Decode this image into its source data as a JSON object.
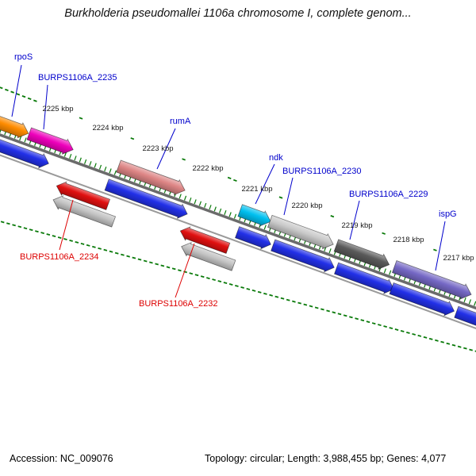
{
  "title": "Burkholderia pseudomallei 1106a chromosome I, complete genom...",
  "footer": {
    "accession": "Accession: NC_009076",
    "summary": "Topology: circular; Length: 3,988,455 bp; Genes: 4,077"
  },
  "ruler": {
    "unit": "kbp",
    "tick_labels": [
      "2225 kbp",
      "2224 kbp",
      "2223 kbp",
      "2222 kbp",
      "2221 kbp",
      "2220 kbp",
      "2219 kbp",
      "2218 kbp",
      "2217 kbp"
    ]
  },
  "colors": {
    "forward_cds": "#2230e8",
    "reverse_shadow": "#c4c4c4",
    "tick_green": "#0a7a0a",
    "backbone": "#6b6b6b",
    "backbone_inner": "#9a9a9a",
    "label_blue": "#0000cc",
    "label_red": "#dd0000"
  },
  "genes": [
    {
      "name": "rpoS",
      "color": "#ff8c00",
      "strand": "forward"
    },
    {
      "name": "BURPS1106A_2235",
      "color": "#ee00bb",
      "strand": "forward"
    },
    {
      "name": "rumA",
      "color": "#dd8585",
      "strand": "forward"
    },
    {
      "name": "ndk",
      "color": "#00c0f0",
      "strand": "forward"
    },
    {
      "name": "BURPS1106A_2230",
      "color": "#c9c9c9",
      "strand": "forward"
    },
    {
      "name": "BURPS1106A_2229",
      "color": "#5a5a5a",
      "strand": "forward"
    },
    {
      "name": "ispG",
      "color": "#7568c5",
      "strand": "forward"
    },
    {
      "name": "BURPS1106A_2234",
      "color": "#e01010",
      "strand": "reverse"
    },
    {
      "name": "BURPS1106A_2232",
      "color": "#e01010",
      "strand": "reverse"
    }
  ]
}
